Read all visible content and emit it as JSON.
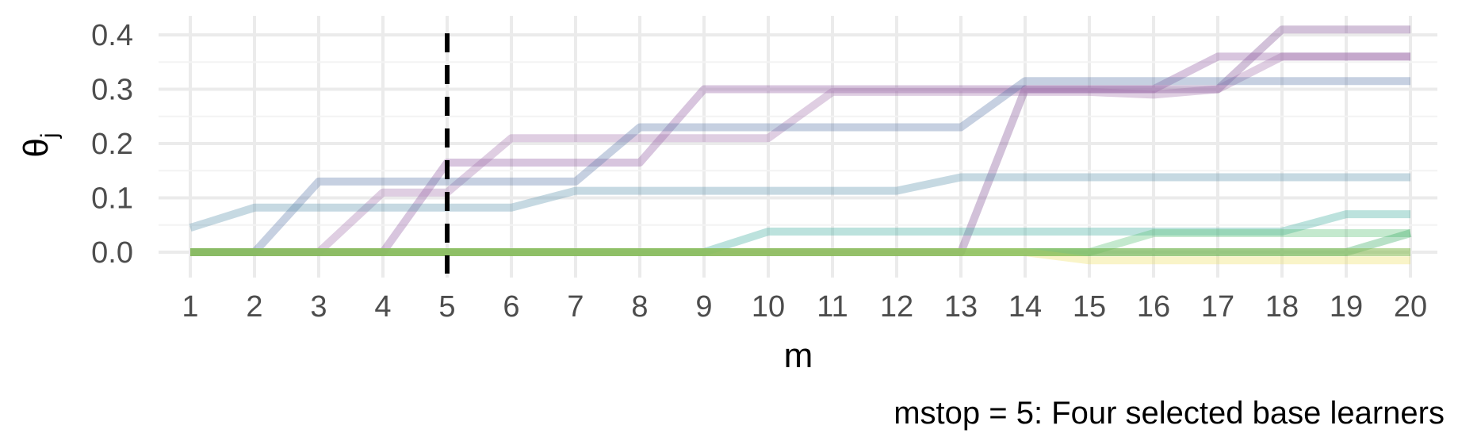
{
  "chart_data": {
    "type": "line",
    "xlabel": "m",
    "ylabel": "θ",
    "ylabel_subscript": "j",
    "caption": "mstop = 5:  Four selected base learners",
    "x": [
      1,
      2,
      3,
      4,
      5,
      6,
      7,
      8,
      9,
      10,
      11,
      12,
      13,
      14,
      15,
      16,
      17,
      18,
      19,
      20
    ],
    "x_ticks": [
      "1",
      "2",
      "3",
      "4",
      "5",
      "6",
      "7",
      "8",
      "9",
      "10",
      "11",
      "12",
      "13",
      "14",
      "15",
      "16",
      "17",
      "18",
      "19",
      "20"
    ],
    "y_ticks": [
      "0.0",
      "0.1",
      "0.2",
      "0.3",
      "0.4"
    ],
    "y_tick_values": [
      0.0,
      0.1,
      0.2,
      0.3,
      0.4
    ],
    "xlim": [
      0.8,
      20.2
    ],
    "ylim": [
      -0.04,
      0.43
    ],
    "grid": true,
    "vline": {
      "x": 5,
      "style": "dashed",
      "color": "#000000"
    },
    "series": [
      {
        "color": "#7e4e93",
        "values": [
          0,
          0,
          0,
          0,
          0,
          0,
          0,
          0,
          0,
          0,
          0,
          0,
          0,
          0.3,
          0.3,
          0.3,
          0.3,
          0.41,
          0.41,
          0.41
        ]
      },
      {
        "color": "#8e5aa1",
        "values": [
          0,
          0,
          0,
          0,
          0.165,
          0.165,
          0.165,
          0.165,
          0.3,
          0.3,
          0.3,
          0.3,
          0.3,
          0.3,
          0.3,
          0.3,
          0.36,
          0.36,
          0.36,
          0.36
        ]
      },
      {
        "color": "#a472ad",
        "values": [
          0,
          0,
          0,
          0.11,
          0.11,
          0.21,
          0.21,
          0.21,
          0.21,
          0.21,
          0.295,
          0.295,
          0.295,
          0.295,
          0.295,
          0.29,
          0.3,
          0.36,
          0.36,
          0.36
        ]
      },
      {
        "color": "#5d79a8",
        "values": [
          0,
          0,
          0.13,
          0.13,
          0.13,
          0.13,
          0.13,
          0.23,
          0.23,
          0.23,
          0.23,
          0.23,
          0.23,
          0.315,
          0.315,
          0.315,
          0.315,
          0.315,
          0.315,
          0.315
        ]
      },
      {
        "color": "#5b93ad",
        "values": [
          0.045,
          0.082,
          0.082,
          0.082,
          0.082,
          0.082,
          0.113,
          0.113,
          0.113,
          0.113,
          0.113,
          0.113,
          0.138,
          0.138,
          0.138,
          0.138,
          0.138,
          0.138,
          0.138,
          0.138
        ]
      },
      {
        "color": "#3fab9f",
        "values": [
          0,
          0,
          0,
          0,
          0,
          0,
          0,
          0,
          0,
          0.038,
          0.038,
          0.038,
          0.038,
          0.038,
          0.038,
          0.038,
          0.038,
          0.038,
          0.07,
          0.07
        ]
      },
      {
        "color": "#56bf74",
        "values": [
          0,
          0,
          0,
          0,
          0,
          0,
          0,
          0,
          0,
          0,
          0,
          0,
          0,
          0,
          0,
          0.035,
          0.035,
          0.035,
          0.035,
          0.035
        ]
      },
      {
        "color": "#34a85e",
        "values": [
          0,
          0,
          0,
          0,
          0,
          0,
          0,
          0,
          0,
          0,
          0,
          0,
          0,
          0,
          0,
          0,
          0,
          0,
          0,
          0.035
        ]
      },
      {
        "color": "#efe060",
        "values": [
          0,
          0,
          0,
          0,
          0,
          0,
          0,
          0,
          0,
          0,
          0,
          0,
          0,
          0,
          -0.015,
          -0.015,
          -0.015,
          -0.015,
          -0.015,
          -0.015
        ]
      },
      {
        "color": "#a2d162",
        "values": [
          0,
          0,
          0,
          0,
          0,
          0,
          0,
          0,
          0,
          0,
          0,
          0,
          0,
          0,
          0,
          0,
          0,
          0,
          0,
          0
        ]
      },
      {
        "color": "#7bb150",
        "values": [
          0,
          0,
          0,
          0,
          0,
          0,
          0,
          0,
          0,
          0,
          0,
          0,
          0,
          0,
          0,
          0,
          0,
          0,
          0,
          0
        ]
      }
    ]
  }
}
